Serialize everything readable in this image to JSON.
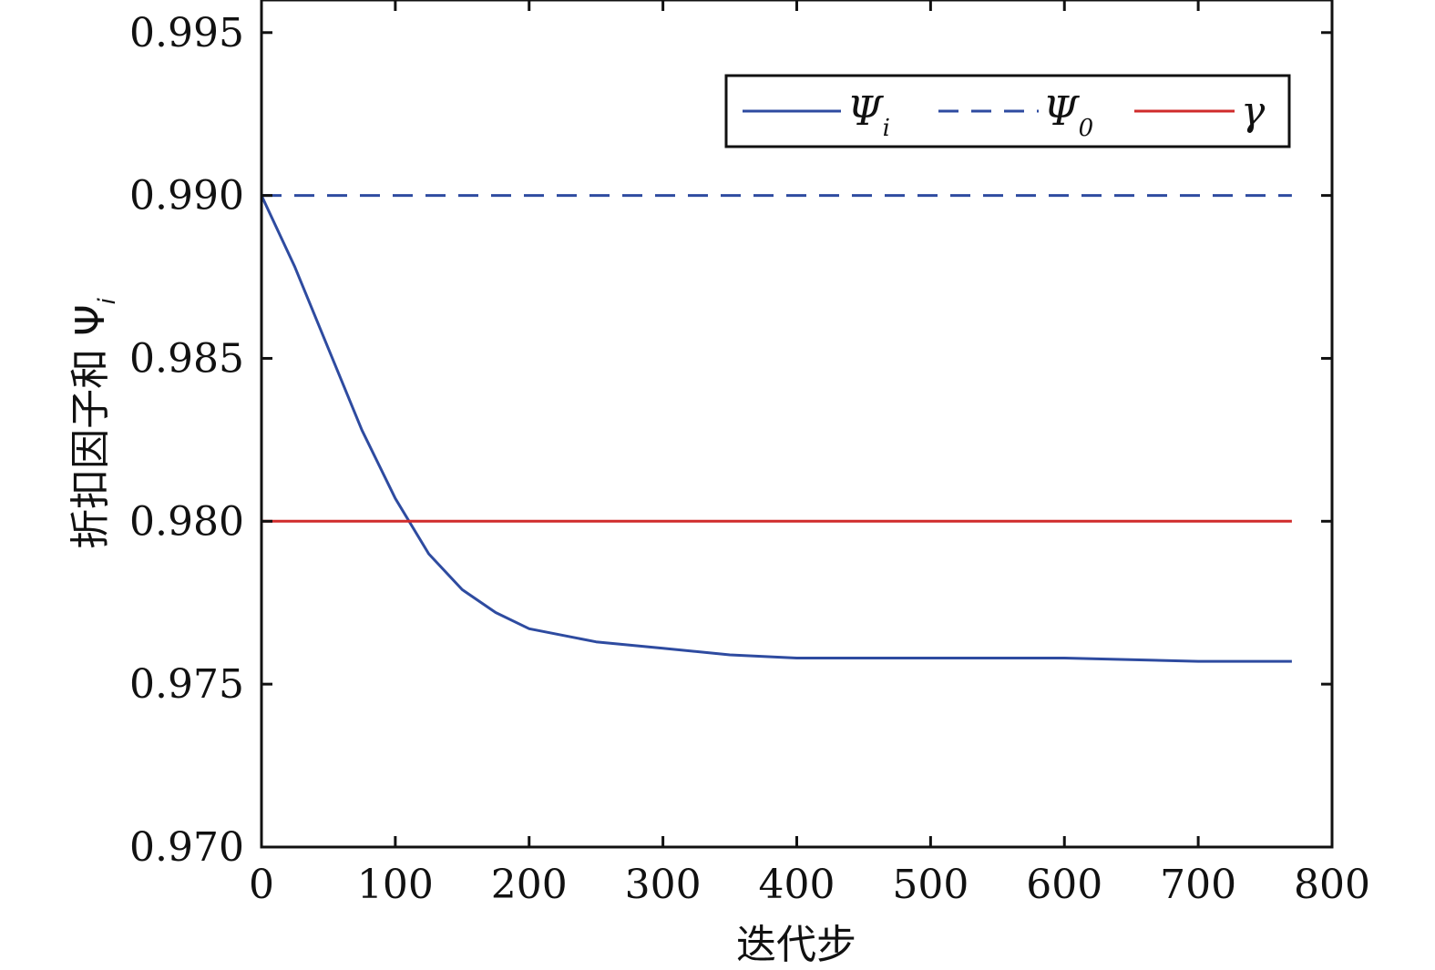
{
  "chart_data": {
    "type": "line",
    "xlabel": "迭代步",
    "ylabel": "折扣因子和 Ψ",
    "ylabel_sub": "i",
    "xlim": [
      0,
      800
    ],
    "ylim": [
      0.97,
      0.996
    ],
    "x_ticks": [
      0,
      100,
      200,
      300,
      400,
      500,
      600,
      700,
      800
    ],
    "x_tick_labels": [
      "0",
      "100",
      "200",
      "300",
      "400",
      "500",
      "600",
      "700",
      "800"
    ],
    "y_ticks": [
      0.97,
      0.975,
      0.98,
      0.985,
      0.99,
      0.995
    ],
    "y_tick_labels": [
      "0.970",
      "0.975",
      "0.980",
      "0.985",
      "0.990",
      "0.995"
    ],
    "grid": false,
    "legend_position": "top-right",
    "series": [
      {
        "name": "Ψ",
        "name_sub": "i",
        "color": "#2e4ba0",
        "style": "solid",
        "x": [
          0,
          25,
          50,
          75,
          100,
          125,
          150,
          175,
          200,
          250,
          300,
          350,
          400,
          450,
          500,
          600,
          700,
          770
        ],
        "y": [
          0.99,
          0.9878,
          0.9853,
          0.9828,
          0.9807,
          0.979,
          0.9779,
          0.9772,
          0.9767,
          0.9763,
          0.9761,
          0.9759,
          0.9758,
          0.9758,
          0.9758,
          0.9758,
          0.9757,
          0.9757
        ]
      },
      {
        "name": "Ψ",
        "name_sub": "0",
        "color": "#2e4ba0",
        "style": "dashed",
        "x": [
          0,
          770
        ],
        "y": [
          0.99,
          0.99
        ]
      },
      {
        "name": "γ",
        "name_sub": "",
        "color": "#d02b2b",
        "style": "solid",
        "x": [
          0,
          770
        ],
        "y": [
          0.98,
          0.98
        ]
      }
    ]
  }
}
